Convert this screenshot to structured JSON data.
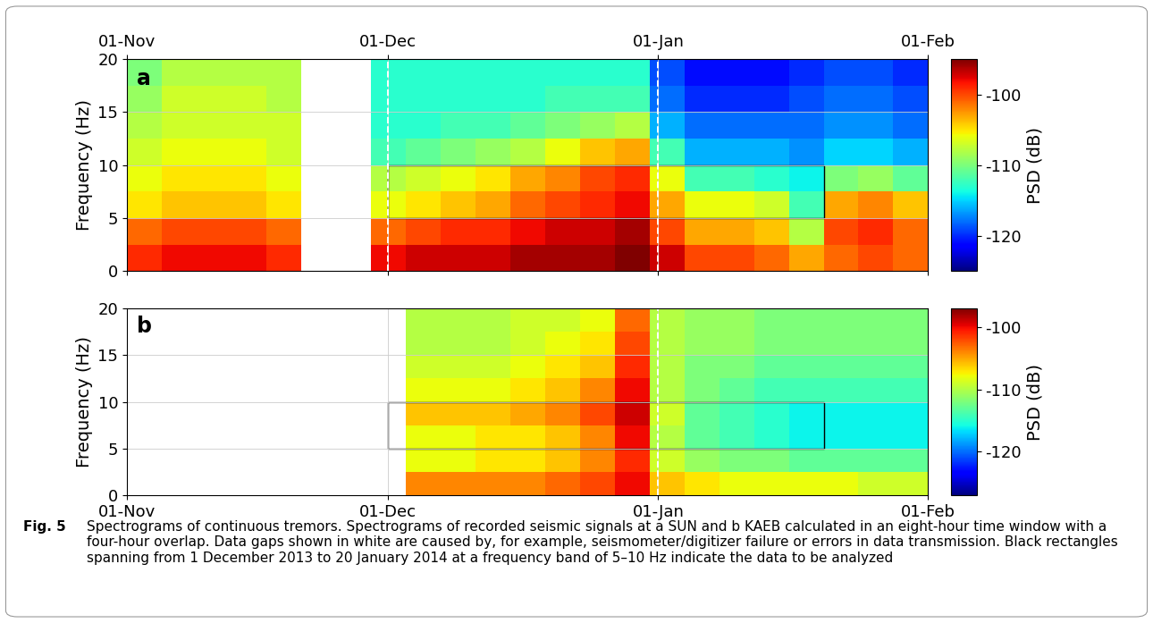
{
  "chart_data": [
    {
      "type": "heatmap",
      "panel_label": "a",
      "ylabel": "Frequency (Hz)",
      "xlim": [
        0,
        92
      ],
      "xticks": [
        {
          "value": 0,
          "label": "01-Nov"
        },
        {
          "value": 30,
          "label": "01-Dec"
        },
        {
          "value": 61,
          "label": "01-Jan"
        },
        {
          "value": 92,
          "label": "01-Feb"
        }
      ],
      "ylim": [
        0,
        20
      ],
      "yticks": [
        0,
        5,
        10,
        15,
        20
      ],
      "grid": true,
      "x_edges": [
        0,
        4,
        8,
        12,
        16,
        20,
        24,
        28,
        32,
        36,
        40,
        44,
        48,
        52,
        56,
        60,
        64,
        68,
        72,
        76,
        80,
        84,
        88,
        92
      ],
      "y_edges": [
        0,
        2.5,
        5,
        7.5,
        10,
        12.5,
        15,
        17.5,
        20
      ],
      "cells": [
        [
          -99,
          -98,
          -98,
          -98,
          -99,
          null,
          null,
          -98,
          -97,
          -97,
          -97,
          -96,
          -96,
          -96,
          -95,
          -97,
          -100,
          -100,
          -101,
          -103,
          -101,
          -100,
          -101
        ],
        [
          -101,
          -100,
          -100,
          -100,
          -101,
          null,
          null,
          -101,
          -100,
          -99,
          -99,
          -98,
          -97,
          -97,
          -96,
          -100,
          -103,
          -103,
          -104,
          -108,
          -100,
          -99,
          -101
        ],
        [
          -105,
          -104,
          -104,
          -104,
          -105,
          null,
          null,
          -106,
          -105,
          -104,
          -103,
          -101,
          -100,
          -99,
          -98,
          -103,
          -106,
          -106,
          -107,
          -112,
          -103,
          -102,
          -104
        ],
        [
          -106,
          -105,
          -105,
          -105,
          -106,
          null,
          null,
          -108,
          -107,
          -106,
          -105,
          -103,
          -102,
          -100,
          -99,
          -106,
          -112,
          -112,
          -113,
          -114,
          -110,
          -109,
          -111
        ],
        [
          -107,
          -106,
          -106,
          -106,
          -107,
          null,
          null,
          -112,
          -111,
          -110,
          -109,
          -108,
          -106,
          -104,
          -103,
          -112,
          -116,
          -116,
          -116,
          -117,
          -115,
          -115,
          -116
        ],
        [
          -108,
          -107,
          -107,
          -107,
          -107,
          null,
          null,
          -113,
          -113,
          -112,
          -112,
          -111,
          -110,
          -109,
          -108,
          -116,
          -118,
          -118,
          -118,
          -118,
          -117,
          -117,
          -118
        ],
        [
          -109,
          -107,
          -107,
          -107,
          -108,
          null,
          null,
          -113,
          -113,
          -113,
          -113,
          -113,
          -112,
          -112,
          -112,
          -118,
          -120,
          -120,
          -120,
          -119,
          -118,
          -118,
          -119
        ],
        [
          -110,
          -108,
          -108,
          -108,
          -108,
          null,
          null,
          -113,
          -113,
          -113,
          -113,
          -113,
          -113,
          -113,
          -113,
          -119,
          -121,
          -121,
          -121,
          -120,
          -119,
          -119,
          -120
        ]
      ],
      "colorbar": {
        "label": "PSD (dB)",
        "range": [
          -125,
          -95
        ],
        "ticks": [
          -100,
          -110,
          -120
        ]
      },
      "box": {
        "x": [
          30,
          80
        ],
        "y": [
          5,
          10
        ]
      },
      "dashed_x": [
        30,
        61
      ]
    },
    {
      "type": "heatmap",
      "panel_label": "b",
      "ylabel": "Frequency (Hz)",
      "xlim": [
        0,
        92
      ],
      "xticks": [
        {
          "value": 0,
          "label": "01-Nov"
        },
        {
          "value": 30,
          "label": "01-Dec"
        },
        {
          "value": 61,
          "label": "01-Jan"
        },
        {
          "value": 92,
          "label": "01-Feb"
        }
      ],
      "ylim": [
        0,
        20
      ],
      "yticks": [
        0,
        5,
        10,
        15,
        20
      ],
      "grid": true,
      "x_edges": [
        0,
        4,
        8,
        12,
        16,
        20,
        24,
        28,
        32,
        36,
        40,
        44,
        48,
        52,
        56,
        60,
        64,
        68,
        72,
        76,
        80,
        84,
        88,
        92
      ],
      "y_edges": [
        0,
        2.5,
        5,
        7.5,
        10,
        12.5,
        15,
        17.5,
        20
      ],
      "cells": [
        [
          null,
          null,
          null,
          null,
          null,
          null,
          null,
          null,
          -104,
          -104,
          -104,
          -104,
          -103,
          -102,
          -100,
          -106,
          -107,
          -108,
          -108,
          -108,
          -108,
          -109,
          -109
        ],
        [
          null,
          null,
          null,
          null,
          null,
          null,
          null,
          null,
          -108,
          -108,
          -107,
          -107,
          -106,
          -104,
          -101,
          -109,
          -111,
          -112,
          -112,
          -113,
          -113,
          -113,
          -113
        ],
        [
          null,
          null,
          null,
          null,
          null,
          null,
          null,
          null,
          -108,
          -108,
          -107,
          -107,
          -106,
          -104,
          -100,
          -110,
          -113,
          -114,
          -115,
          -116,
          -116,
          -116,
          -116
        ],
        [
          null,
          null,
          null,
          null,
          null,
          null,
          null,
          null,
          -106,
          -106,
          -106,
          -105,
          -104,
          -102,
          -99,
          -109,
          -113,
          -114,
          -115,
          -116,
          -116,
          -116,
          -116
        ],
        [
          null,
          null,
          null,
          null,
          null,
          null,
          null,
          null,
          -108,
          -108,
          -108,
          -107,
          -106,
          -104,
          -100,
          -110,
          -112,
          -113,
          -114,
          -114,
          -114,
          -114,
          -114
        ],
        [
          null,
          null,
          null,
          null,
          null,
          null,
          null,
          null,
          -109,
          -109,
          -109,
          -108,
          -107,
          -106,
          -101,
          -110,
          -112,
          -112,
          -113,
          -113,
          -113,
          -113,
          -113
        ],
        [
          null,
          null,
          null,
          null,
          null,
          null,
          null,
          null,
          -110,
          -110,
          -110,
          -109,
          -108,
          -107,
          -102,
          -110,
          -111,
          -111,
          -112,
          -112,
          -112,
          -112,
          -112
        ],
        [
          null,
          null,
          null,
          null,
          null,
          null,
          null,
          null,
          -110,
          -110,
          -110,
          -109,
          -109,
          -108,
          -103,
          -110,
          -111,
          -111,
          -112,
          -112,
          -112,
          -112,
          -112
        ]
      ],
      "colorbar": {
        "label": "PSD (dB)",
        "range": [
          -127,
          -97
        ],
        "ticks": [
          -100,
          -110,
          -120
        ]
      },
      "box": {
        "x": [
          30,
          80
        ],
        "y": [
          5,
          10
        ]
      },
      "dashed_x": [
        61
      ]
    }
  ],
  "caption": {
    "label": "Fig. 5",
    "text": "Spectrograms of continuous tremors. Spectrograms of recorded seismic signals at a SUN and b KAEB calculated in an eight-hour time window with a four-hour overlap. Data gaps shown in white are caused by, for example, seismometer/digitizer failure or errors in data transmission. Black rectangles spanning from 1 December 2013 to 20 January 2014 at a frequency band of 5–10 Hz indicate the data to be analyzed"
  }
}
